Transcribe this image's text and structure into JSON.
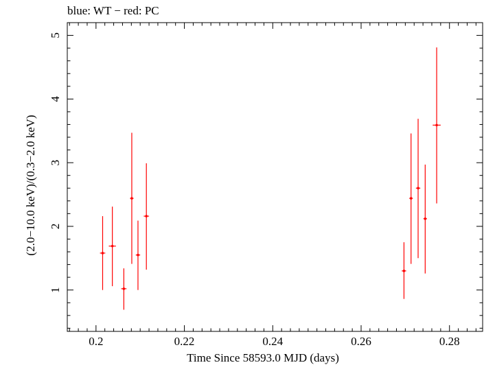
{
  "chart_data": {
    "type": "scatter",
    "title": "blue: WT − red: PC",
    "xlabel": "Time Since 58593.0 MJD (days)",
    "ylabel": "(2.0−10.0 keV)/(0.3−2.0 keV)",
    "xlim": [
      0.1935,
      0.2875
    ],
    "ylim": [
      0.35,
      5.2
    ],
    "x_ticks": [
      0.2,
      0.22,
      0.24,
      0.26,
      0.28
    ],
    "x_tick_labels": [
      "0.2",
      "0.22",
      "0.24",
      "0.26",
      "0.28"
    ],
    "y_ticks": [
      1,
      2,
      3,
      4,
      5
    ],
    "y_tick_labels": [
      "1",
      "2",
      "3",
      "4",
      "5"
    ],
    "grid": false,
    "series": [
      {
        "name": "PC",
        "color": "#ff0000",
        "points": [
          {
            "x": 0.2015,
            "xerr": 0.0006,
            "y": 1.58,
            "ylo": 1.0,
            "yhi": 2.16
          },
          {
            "x": 0.2037,
            "xerr": 0.0008,
            "y": 1.69,
            "ylo": 1.06,
            "yhi": 2.31
          },
          {
            "x": 0.2063,
            "xerr": 0.0006,
            "y": 1.02,
            "ylo": 0.69,
            "yhi": 1.34
          },
          {
            "x": 0.2081,
            "xerr": 0.0004,
            "y": 2.44,
            "ylo": 1.41,
            "yhi": 3.47
          },
          {
            "x": 0.2095,
            "xerr": 0.0005,
            "y": 1.55,
            "ylo": 1.0,
            "yhi": 2.09
          },
          {
            "x": 0.2114,
            "xerr": 0.0006,
            "y": 2.16,
            "ylo": 1.32,
            "yhi": 2.99
          },
          {
            "x": 0.2697,
            "xerr": 0.0005,
            "y": 1.3,
            "ylo": 0.86,
            "yhi": 1.75
          },
          {
            "x": 0.2713,
            "xerr": 0.0004,
            "y": 2.44,
            "ylo": 1.41,
            "yhi": 3.46
          },
          {
            "x": 0.2729,
            "xerr": 0.0005,
            "y": 2.6,
            "ylo": 1.5,
            "yhi": 3.69
          },
          {
            "x": 0.2745,
            "xerr": 0.0004,
            "y": 2.12,
            "ylo": 1.26,
            "yhi": 2.97
          },
          {
            "x": 0.2771,
            "xerr": 0.0009,
            "y": 3.59,
            "ylo": 2.36,
            "yhi": 4.81
          }
        ]
      }
    ]
  }
}
